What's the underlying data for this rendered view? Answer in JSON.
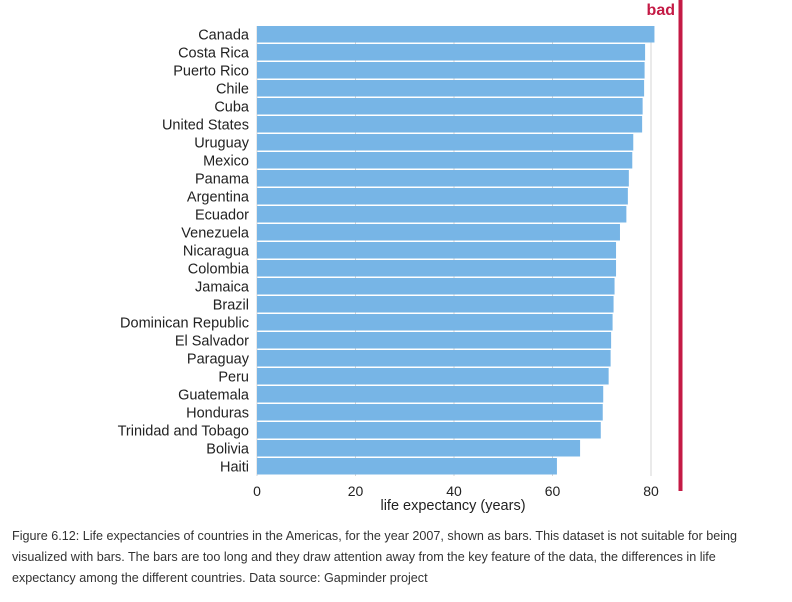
{
  "chart_data": {
    "type": "bar",
    "orientation": "horizontal",
    "categories": [
      "Canada",
      "Costa Rica",
      "Puerto Rico",
      "Chile",
      "Cuba",
      "United States",
      "Uruguay",
      "Mexico",
      "Panama",
      "Argentina",
      "Ecuador",
      "Venezuela",
      "Nicaragua",
      "Colombia",
      "Jamaica",
      "Brazil",
      "Dominican Republic",
      "El Salvador",
      "Paraguay",
      "Peru",
      "Guatemala",
      "Honduras",
      "Trinidad and Tobago",
      "Bolivia",
      "Haiti"
    ],
    "values": [
      80.7,
      78.8,
      78.7,
      78.6,
      78.3,
      78.2,
      76.4,
      76.2,
      75.5,
      75.3,
      75.0,
      73.7,
      72.9,
      72.9,
      72.6,
      72.4,
      72.2,
      71.9,
      71.8,
      71.4,
      70.3,
      70.2,
      69.8,
      65.6,
      60.9
    ],
    "xlabel": "life expectancy (years)",
    "ylabel": "",
    "xlim": [
      0,
      87
    ],
    "xticks": [
      0,
      20,
      40,
      60,
      80
    ],
    "grid": "vertical",
    "bar_color": "#77b5e6",
    "annotation": "bad",
    "annotation_color": "#c41a45"
  },
  "caption": "Figure 6.12: Life expectancies of countries in the Americas, for the year 2007, shown as bars. This dataset is not suitable for being visualized with bars. The bars are too long and they draw attention away from the key feature of the data, the differences in life expectancy among the different countries. Data source: Gapminder project"
}
